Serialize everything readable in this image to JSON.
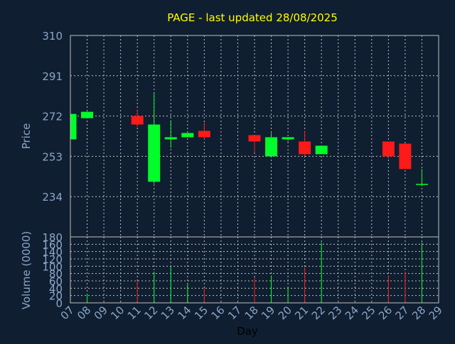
{
  "chart_data": {
    "type": "candlestick",
    "title": "PAGE - last updated 28/08/2025",
    "xlabel": "Day",
    "x_ticks": [
      "07",
      "08",
      "09",
      "10",
      "11",
      "12",
      "13",
      "14",
      "15",
      "16",
      "17",
      "18",
      "19",
      "20",
      "21",
      "22",
      "23",
      "24",
      "25",
      "26",
      "27",
      "28",
      "29"
    ],
    "price_panel": {
      "ylabel": "Price",
      "ylim": [
        215,
        310
      ],
      "y_ticks": [
        "310",
        "291",
        "272",
        "253",
        "234"
      ],
      "y_tick_values": [
        310,
        291,
        272,
        253,
        234
      ],
      "grid": true
    },
    "volume_panel": {
      "ylabel": "Volume (0000)",
      "ylim": [
        0,
        180
      ],
      "y_ticks": [
        "0",
        "20",
        "40",
        "60",
        "80",
        "100",
        "120",
        "140",
        "160",
        "180"
      ],
      "y_tick_values": [
        0,
        20,
        40,
        60,
        80,
        100,
        120,
        140,
        160,
        180
      ],
      "grid": true
    },
    "colors": {
      "background": "#0f1e30",
      "up": "#00ff2a",
      "down": "#ff1a1a",
      "title": "#ffff00",
      "axis_text": "#8aa6c8",
      "grid": "#c0c0c0"
    },
    "candles": [
      {
        "day": "07",
        "open": 261,
        "high": 273,
        "low": 261,
        "close": 273,
        "volume": 0
      },
      {
        "day": "08",
        "open": 271,
        "high": 274,
        "low": 271,
        "close": 274,
        "volume": 25
      },
      {
        "day": "11",
        "open": 272,
        "high": 275,
        "low": 267,
        "close": 268,
        "volume": 60
      },
      {
        "day": "12",
        "open": 241,
        "high": 283,
        "low": 240,
        "close": 268,
        "volume": 85
      },
      {
        "day": "13",
        "open": 261,
        "high": 270,
        "low": 257,
        "close": 262,
        "volume": 100
      },
      {
        "day": "14",
        "open": 262,
        "high": 264,
        "low": 262,
        "close": 264,
        "volume": 50
      },
      {
        "day": "15",
        "open": 265,
        "high": 269,
        "low": 261,
        "close": 262,
        "volume": 40
      },
      {
        "day": "18",
        "open": 263,
        "high": 263,
        "low": 255,
        "close": 260,
        "volume": 70
      },
      {
        "day": "19",
        "open": 253,
        "high": 264,
        "low": 253,
        "close": 262,
        "volume": 75
      },
      {
        "day": "20",
        "open": 261,
        "high": 262,
        "low": 260,
        "close": 262,
        "volume": 40
      },
      {
        "day": "21",
        "open": 260,
        "high": 265,
        "low": 253,
        "close": 254,
        "volume": 97
      },
      {
        "day": "22",
        "open": 254,
        "high": 258,
        "low": 254,
        "close": 258,
        "volume": 165
      },
      {
        "day": "26",
        "open": 260,
        "high": 260,
        "low": 252,
        "close": 253,
        "volume": 75
      },
      {
        "day": "27",
        "open": 259,
        "high": 259,
        "low": 247,
        "close": 247,
        "volume": 85
      },
      {
        "day": "28",
        "open": 240,
        "high": 247,
        "low": 239,
        "close": 240,
        "volume": 165
      }
    ]
  }
}
